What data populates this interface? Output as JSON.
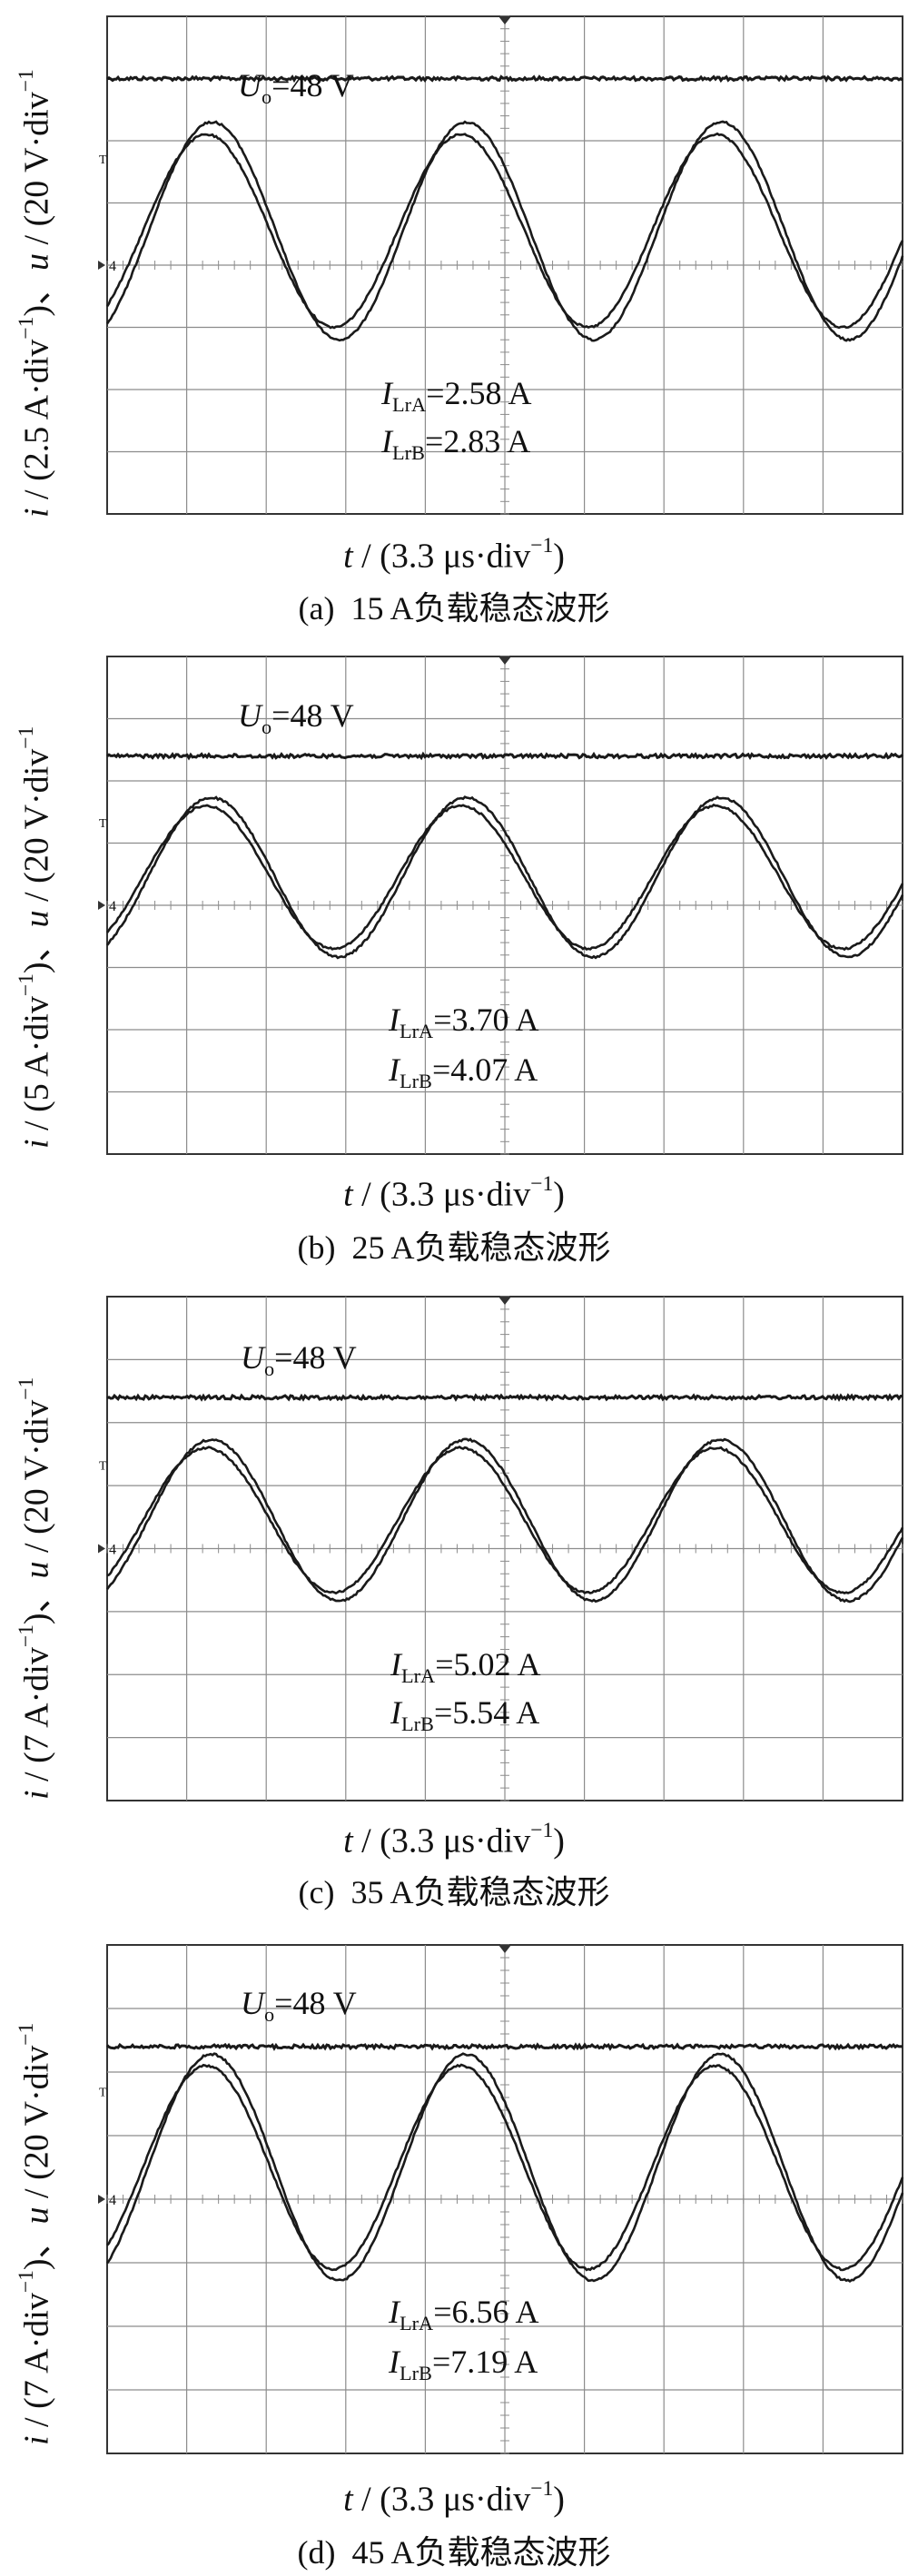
{
  "chart_data": [
    {
      "type": "line",
      "panel_id": "a",
      "caption_tag": "(a)",
      "caption": "15 A负载稳态波形",
      "ylabel": {
        "left": "i",
        "sep": " / (2.5 A·div",
        "sup": "−1",
        "mid": ")、",
        "right": "u",
        "tail": " / (20 V·div",
        "tail_sup": "−1"
      },
      "xlabel": {
        "var": "t",
        "unit": " / (3.3 μs·div",
        "sup": "−1",
        "close": ")"
      },
      "divisions": {
        "x": 10,
        "y": 8
      },
      "xlim_div": [
        -5,
        5
      ],
      "ylim_div": [
        -4,
        4
      ],
      "trigger_marker": "T",
      "channel_marker": "4",
      "voltage": {
        "name": "Uo",
        "label_main": "U",
        "label_sub": "o",
        "label_value": "=48 V",
        "level_div": 3.0
      },
      "series": [
        {
          "name": "ILrA",
          "label_main": "I",
          "label_sub": "LrA",
          "label_value": "=2.58 A",
          "amplitude_div": 1.55,
          "offset_div": 0.55,
          "period_div": 3.2,
          "phase_deg": 0
        },
        {
          "name": "ILrB",
          "label_main": "I",
          "label_sub": "LrB",
          "label_value": "=2.83 A",
          "amplitude_div": 1.75,
          "offset_div": 0.55,
          "period_div": 3.2,
          "phase_deg": -8
        }
      ]
    },
    {
      "type": "line",
      "panel_id": "b",
      "caption_tag": "(b)",
      "caption": "25 A负载稳态波形",
      "ylabel": {
        "left": "i",
        "sep": " / (5 A·div",
        "sup": "−1",
        "mid": ")、",
        "right": "u",
        "tail": " / (20 V·div",
        "tail_sup": "−1"
      },
      "xlabel": {
        "var": "t",
        "unit": " / (3.3 μs·div",
        "sup": "−1",
        "close": ")"
      },
      "divisions": {
        "x": 10,
        "y": 8
      },
      "xlim_div": [
        -5,
        5
      ],
      "ylim_div": [
        -4,
        4
      ],
      "trigger_marker": "T",
      "channel_marker": "4",
      "voltage": {
        "name": "Uo",
        "label_main": "U",
        "label_sub": "o",
        "label_value": "=48 V",
        "level_div": 2.4
      },
      "series": [
        {
          "name": "ILrA",
          "label_main": "I",
          "label_sub": "LrA",
          "label_value": "=3.70 A",
          "amplitude_div": 1.15,
          "offset_div": 0.45,
          "period_div": 3.2,
          "phase_deg": 0
        },
        {
          "name": "ILrB",
          "label_main": "I",
          "label_sub": "LrB",
          "label_value": "=4.07 A",
          "amplitude_div": 1.28,
          "offset_div": 0.45,
          "period_div": 3.2,
          "phase_deg": -7
        }
      ]
    },
    {
      "type": "line",
      "panel_id": "c",
      "caption_tag": "(c)",
      "caption": "35 A负载稳态波形",
      "ylabel": {
        "left": "i",
        "sep": " / (7 A·div",
        "sup": "−1",
        "mid": ")、",
        "right": "u",
        "tail": " / (20 V·div",
        "tail_sup": "−1"
      },
      "xlabel": {
        "var": "t",
        "unit": " / (3.3 μs·div",
        "sup": "−1",
        "close": ")"
      },
      "divisions": {
        "x": 10,
        "y": 8
      },
      "xlim_div": [
        -5,
        5
      ],
      "ylim_div": [
        -4,
        4
      ],
      "trigger_marker": "T",
      "channel_marker": "4",
      "voltage": {
        "name": "Uo",
        "label_main": "U",
        "label_sub": "o",
        "label_value": "=48 V",
        "level_div": 2.4
      },
      "series": [
        {
          "name": "ILrA",
          "label_main": "I",
          "label_sub": "LrA",
          "label_value": "=5.02 A",
          "amplitude_div": 1.15,
          "offset_div": 0.45,
          "period_div": 3.2,
          "phase_deg": 0
        },
        {
          "name": "ILrB",
          "label_main": "I",
          "label_sub": "LrB",
          "label_value": "=5.54 A",
          "amplitude_div": 1.28,
          "offset_div": 0.45,
          "period_div": 3.2,
          "phase_deg": -7
        }
      ]
    },
    {
      "type": "line",
      "panel_id": "d",
      "caption_tag": "(d)",
      "caption": "45 A负载稳态波形",
      "ylabel": {
        "left": "i",
        "sep": " / (7 A·div",
        "sup": "−1",
        "mid": ")、",
        "right": "u",
        "tail": " / (20 V·div",
        "tail_sup": "−1"
      },
      "xlabel": {
        "var": "t",
        "unit": " / (3.3 μs·div",
        "sup": "−1",
        "close": ")"
      },
      "divisions": {
        "x": 10,
        "y": 8
      },
      "xlim_div": [
        -5,
        5
      ],
      "ylim_div": [
        -4,
        4
      ],
      "trigger_marker": "T",
      "channel_marker": "4",
      "voltage": {
        "name": "Uo",
        "label_main": "U",
        "label_sub": "o",
        "label_value": "=48 V",
        "level_div": 2.4
      },
      "series": [
        {
          "name": "ILrA",
          "label_main": "I",
          "label_sub": "LrA",
          "label_value": "=6.56 A",
          "amplitude_div": 1.6,
          "offset_div": 0.5,
          "period_div": 3.2,
          "phase_deg": 0
        },
        {
          "name": "ILrB",
          "label_main": "I",
          "label_sub": "LrB",
          "label_value": "=7.19 A",
          "amplitude_div": 1.78,
          "offset_div": 0.5,
          "period_div": 3.2,
          "phase_deg": -7
        }
      ]
    }
  ],
  "colors": {
    "trace": "#1a1a1a",
    "grid": "#8c8c8c",
    "frame": "#333333",
    "background": "#ffffff"
  }
}
